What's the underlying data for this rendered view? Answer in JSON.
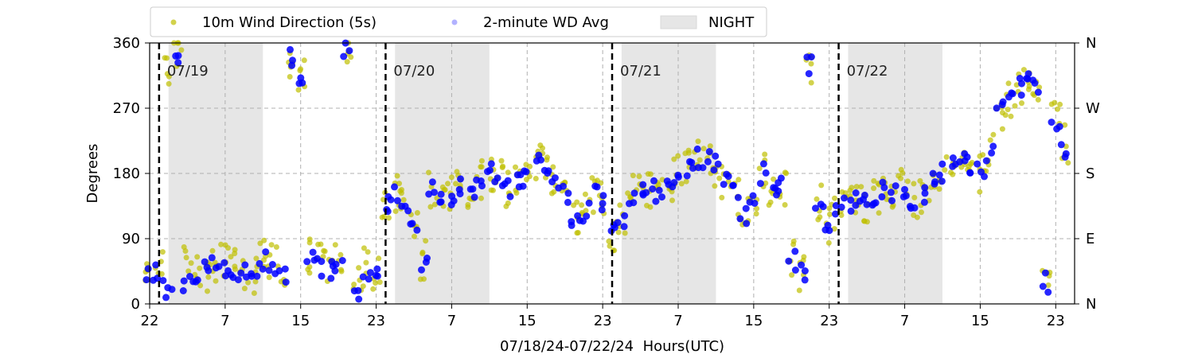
{
  "chart_data": {
    "type": "scatter",
    "title": "",
    "xlabel": "07/18/24-07/22/24  Hours(UTC)",
    "ylabel": "Degrees",
    "x_start": "07/18 22:00",
    "xlim_hours": [
      0,
      98
    ],
    "ylim": [
      0,
      360
    ],
    "y_ticks": [
      "0",
      "90",
      "180",
      "270",
      "360"
    ],
    "y_ticks_right": [
      "N",
      "E",
      "S",
      "W",
      "N"
    ],
    "x_tick_labels": [
      "22",
      "7",
      "15",
      "23",
      "7",
      "15",
      "23",
      "7",
      "15",
      "23",
      "7",
      "15",
      "23"
    ],
    "grid": true,
    "legend_position": "top",
    "legend": [
      {
        "label": "10m Wind Direction (5s)",
        "kind": "point",
        "color": "#bfbf00"
      },
      {
        "label": "2-minute WD Avg",
        "kind": "point",
        "color": "#0000ff"
      },
      {
        "label": "NIGHT",
        "kind": "patch",
        "color": "#e6e6e6"
      }
    ],
    "day_markers": [
      {
        "hour": 1,
        "label": "07/19"
      },
      {
        "hour": 25,
        "label": "07/20"
      },
      {
        "hour": 49,
        "label": "07/21"
      },
      {
        "hour": 73,
        "label": "07/22"
      }
    ],
    "night_bands": [
      [
        2,
        12
      ],
      [
        26,
        36
      ],
      [
        50,
        60
      ],
      [
        74,
        84
      ]
    ],
    "series": [
      {
        "name": "10m Wind Direction (5s)",
        "color": "#bfbf00",
        "x": [
          0,
          1,
          2,
          3,
          4,
          5,
          6,
          7,
          8,
          9,
          10,
          11,
          12,
          13,
          14,
          15,
          16,
          17,
          18,
          19,
          20,
          21,
          22,
          23,
          24,
          25,
          26,
          27,
          28,
          29,
          30,
          31,
          32,
          33,
          34,
          35,
          36,
          37,
          38,
          39,
          40,
          41,
          42,
          43,
          44,
          45,
          46,
          47,
          48,
          49,
          50,
          51,
          52,
          53,
          54,
          55,
          56,
          57,
          58,
          59,
          60,
          61,
          62,
          63,
          64,
          65,
          66,
          67,
          68,
          69,
          70,
          71,
          72,
          73,
          74,
          75,
          76,
          77,
          78,
          79,
          80,
          81,
          82,
          83,
          84,
          85,
          86,
          87,
          88,
          89,
          90,
          91,
          92,
          93,
          94,
          95,
          96,
          97
        ],
        "y": [
          40,
          45,
          330,
          345,
          60,
          40,
          45,
          50,
          60,
          50,
          45,
          40,
          70,
          60,
          50,
          330,
          310,
          70,
          60,
          50,
          60,
          345,
          30,
          50,
          40,
          130,
          150,
          140,
          100,
          60,
          160,
          150,
          150,
          160,
          160,
          170,
          180,
          180,
          160,
          165,
          175,
          195,
          190,
          175,
          150,
          120,
          130,
          150,
          140,
          100,
          110,
          150,
          160,
          160,
          150,
          165,
          185,
          190,
          200,
          200,
          190,
          170,
          150,
          120,
          140,
          180,
          150,
          160,
          60,
          40,
          330,
          140,
          110,
          130,
          140,
          150,
          140,
          150,
          160,
          150,
          160,
          140,
          150,
          170,
          180,
          190,
          200,
          190,
          180,
          210,
          260,
          280,
          300,
          320,
          300,
          40,
          260,
          220
        ]
      },
      {
        "name": "2-minute WD Avg",
        "color": "#0000ff",
        "x": [
          0,
          1,
          2,
          3,
          4,
          5,
          6,
          7,
          8,
          9,
          10,
          11,
          12,
          13,
          14,
          15,
          16,
          17,
          18,
          19,
          20,
          21,
          22,
          23,
          24,
          25,
          26,
          27,
          28,
          29,
          30,
          31,
          32,
          33,
          34,
          35,
          36,
          37,
          38,
          39,
          40,
          41,
          42,
          43,
          44,
          45,
          46,
          47,
          48,
          49,
          50,
          51,
          52,
          53,
          54,
          55,
          56,
          57,
          58,
          59,
          60,
          61,
          62,
          63,
          64,
          65,
          66,
          67,
          68,
          69,
          70,
          71,
          72,
          73,
          74,
          75,
          76,
          77,
          78,
          79,
          80,
          81,
          82,
          83,
          84,
          85,
          86,
          87,
          88,
          89,
          90,
          91,
          92,
          93,
          94,
          95,
          96,
          97
        ],
        "y": [
          40,
          45,
          20,
          330,
          30,
          40,
          45,
          50,
          45,
          45,
          40,
          40,
          60,
          50,
          40,
          340,
          300,
          70,
          50,
          45,
          50,
          350,
          20,
          30,
          40,
          140,
          150,
          140,
          100,
          60,
          160,
          145,
          150,
          160,
          160,
          170,
          180,
          175,
          160,
          165,
          170,
          200,
          185,
          170,
          150,
          120,
          125,
          150,
          140,
          100,
          110,
          150,
          160,
          160,
          150,
          160,
          180,
          190,
          200,
          200,
          190,
          170,
          150,
          120,
          140,
          180,
          150,
          160,
          60,
          40,
          330,
          140,
          110,
          130,
          140,
          150,
          140,
          150,
          160,
          150,
          160,
          140,
          150,
          170,
          180,
          190,
          200,
          190,
          180,
          210,
          270,
          290,
          300,
          310,
          300,
          30,
          250,
          210
        ]
      }
    ]
  }
}
